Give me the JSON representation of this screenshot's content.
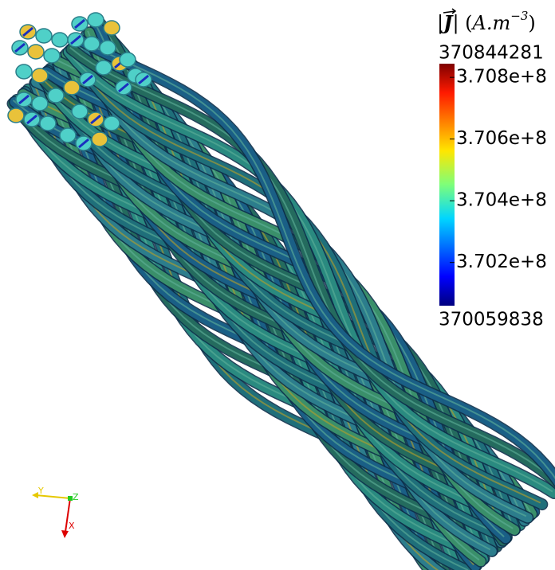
{
  "colorbar": {
    "title": [
      "|",
      "J",
      "| (",
      "A.m",
      "−3",
      ")"
    ],
    "range": [
      370059838,
      370844281
    ],
    "range_labels": {
      "max": "370844281",
      "min": "370059838"
    },
    "ticks": [
      {
        "value": 370800000,
        "label": "3.708e+8"
      },
      {
        "value": 370600000,
        "label": "3.706e+8"
      },
      {
        "value": 370400000,
        "label": "3.704e+8"
      },
      {
        "value": 370200000,
        "label": "3.702e+8"
      }
    ]
  },
  "orientation_axes": {
    "y": "Y",
    "z": "Z",
    "x": "X"
  }
}
